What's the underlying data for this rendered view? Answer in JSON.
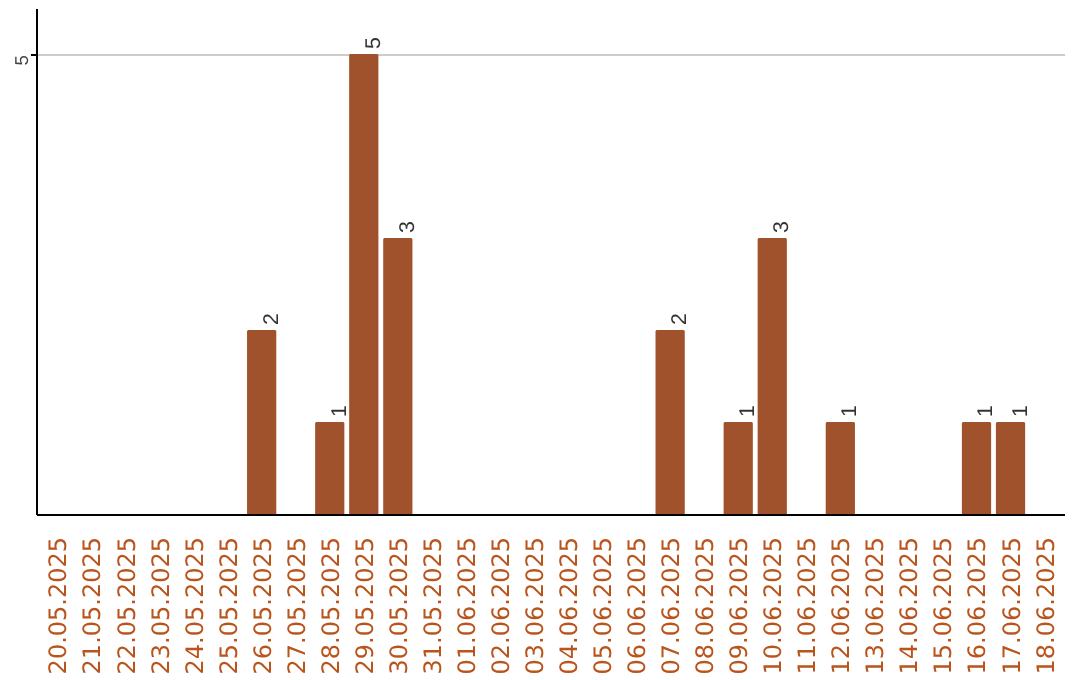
{
  "chart_data": {
    "type": "bar",
    "categories": [
      "20.05.2025",
      "21.05.2025",
      "22.05.2025",
      "23.05.2025",
      "24.05.2025",
      "25.05.2025",
      "26.05.2025",
      "27.05.2025",
      "28.05.2025",
      "29.05.2025",
      "30.05.2025",
      "31.05.2025",
      "01.06.2025",
      "02.06.2025",
      "03.06.2025",
      "04.06.2025",
      "05.06.2025",
      "06.06.2025",
      "07.06.2025",
      "08.06.2025",
      "09.06.2025",
      "10.06.2025",
      "11.06.2025",
      "12.06.2025",
      "13.06.2025",
      "14.06.2025",
      "15.06.2025",
      "16.06.2025",
      "17.06.2025",
      "18.06.2025"
    ],
    "values": [
      0,
      0,
      0,
      0,
      0,
      0,
      2,
      0,
      1,
      5,
      3,
      0,
      0,
      0,
      0,
      0,
      0,
      0,
      2,
      0,
      1,
      3,
      0,
      1,
      0,
      0,
      0,
      1,
      1,
      0
    ],
    "value_labels": [
      null,
      null,
      null,
      null,
      null,
      null,
      "2",
      null,
      "1",
      "5",
      "3",
      null,
      null,
      null,
      null,
      null,
      null,
      null,
      "2",
      null,
      "1",
      "3",
      null,
      "1",
      null,
      null,
      null,
      "1",
      "1",
      null
    ],
    "color": "#a0522d",
    "ylim": [
      0,
      5.5
    ],
    "yticks": [
      5
    ],
    "grid": "y"
  }
}
